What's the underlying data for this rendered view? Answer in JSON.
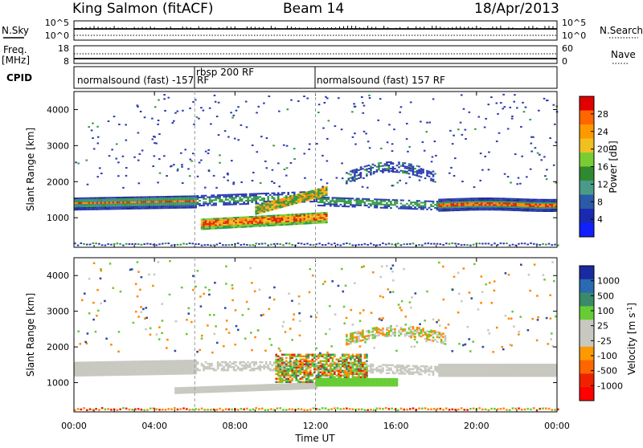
{
  "header": {
    "station": "King Salmon (fitACF)",
    "beam": "Beam 14",
    "date": "18/Apr/2013"
  },
  "top_panels": {
    "nsky": {
      "label": "N.Sky",
      "ticks": [
        "10^5",
        "10^0"
      ]
    },
    "nsearch": {
      "label": "N.Search",
      "ticks": [
        "10^5",
        "10^0"
      ]
    },
    "freq": {
      "label1": "Freq.",
      "label2": "[MHz]",
      "ticks": [
        "18",
        "8"
      ]
    },
    "nave": {
      "label": "Nave",
      "ticks": [
        "60",
        "0"
      ]
    },
    "cpid": {
      "label": "CPID"
    }
  },
  "cpid_segments": [
    {
      "name": "normalsound (fast) -157 RF",
      "start_h": 0
    },
    {
      "name": "rbsp 200 RF",
      "start_h": 6
    },
    {
      "name": "normalsound (fast) 157 RF",
      "start_h": 12
    }
  ],
  "power_colorbar": {
    "title": "Power [dB]",
    "ticks": [
      "28",
      "24",
      "20",
      "16",
      "12",
      "8",
      "4"
    ],
    "colors": [
      "#e00000",
      "#ff6600",
      "#ff9900",
      "#f0c020",
      "#7acc33",
      "#2f8a2f",
      "#4a9a8a",
      "#2a5aa8",
      "#1a2ab0",
      "#1020ff"
    ]
  },
  "velocity_colorbar": {
    "title": "Velocity [m s",
    "title_sup": "-1",
    "title_end": "]",
    "ticks": [
      "1000",
      "500",
      "100",
      "25",
      "-25",
      "-100",
      "-500",
      "-1000"
    ],
    "colors": [
      "#1a2aa0",
      "#2a6ab0",
      "#3a8a6a",
      "#66cc33",
      "#c8c8c0",
      "#c8c8c0",
      "#ff9900",
      "#ff6600",
      "#ee2200",
      "#ff0000"
    ]
  },
  "chart_data": [
    {
      "type": "heatmap",
      "title": "Power",
      "xlabel": "Time UT",
      "ylabel": "Slant Range [km]",
      "xlim": [
        0,
        24
      ],
      "ylim": [
        180,
        4500
      ],
      "xticks": [
        "00:00",
        "04:00",
        "08:00",
        "12:00",
        "16:00",
        "20:00",
        "00:00"
      ],
      "yticks": [
        "1000",
        "2000",
        "3000",
        "4000"
      ],
      "colorbar_ticks": [
        28,
        24,
        20,
        16,
        12,
        8,
        4
      ],
      "bands": [
        {
          "t0": 0,
          "t1": 6,
          "r0": 1150,
          "r1": 1650,
          "level": "mixed"
        },
        {
          "t0": 6,
          "t1": 12,
          "r0": 600,
          "r1": 1000,
          "level": "high"
        },
        {
          "t0": 9,
          "t1": 12.5,
          "r0": 1000,
          "r1": 1700,
          "level": "high"
        },
        {
          "t0": 12,
          "t1": 24,
          "r0": 1100,
          "r1": 1700,
          "level": "mixed"
        },
        {
          "t0": 13.5,
          "t1": 18,
          "r0": 1800,
          "r1": 2500,
          "level": "low"
        }
      ]
    },
    {
      "type": "heatmap",
      "title": "Velocity",
      "xlabel": "Time UT",
      "ylabel": "Slant Range [km]",
      "xlim": [
        0,
        24
      ],
      "ylim": [
        180,
        4500
      ],
      "xticks": [
        "00:00",
        "04:00",
        "08:00",
        "12:00",
        "16:00",
        "20:00",
        "00:00"
      ],
      "yticks": [
        "1000",
        "2000",
        "3000",
        "4000"
      ],
      "colorbar_ticks": [
        1000,
        500,
        100,
        25,
        -25,
        -100,
        -500,
        -1000
      ]
    }
  ]
}
